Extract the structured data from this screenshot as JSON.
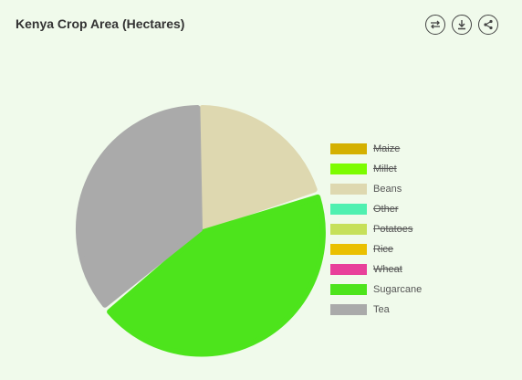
{
  "title": "Kenya Crop Area (Hectares)",
  "toolbar": {
    "icons": [
      "swap-icon",
      "download-icon",
      "share-icon"
    ]
  },
  "chart_data": {
    "type": "pie",
    "title": "Kenya Crop Area (Hectares)",
    "legend_position": "right",
    "series": [
      {
        "name": "Maize",
        "value": null,
        "color": "#d4b000",
        "visible": false
      },
      {
        "name": "Millet",
        "value": null,
        "color": "#7cfc00",
        "visible": false
      },
      {
        "name": "Beans",
        "value": 20,
        "color": "#ded8b0",
        "visible": true
      },
      {
        "name": "Other",
        "value": null,
        "color": "#4ff0b0",
        "visible": false
      },
      {
        "name": "Potatoes",
        "value": null,
        "color": "#c6e05a",
        "visible": false
      },
      {
        "name": "Rice",
        "value": null,
        "color": "#eac000",
        "visible": false
      },
      {
        "name": "Wheat",
        "value": null,
        "color": "#e8409a",
        "visible": false
      },
      {
        "name": "Sugarcane",
        "value": 44,
        "color": "#4de41c",
        "visible": true
      },
      {
        "name": "Tea",
        "value": 36,
        "color": "#aaaaaa",
        "visible": true
      }
    ]
  }
}
